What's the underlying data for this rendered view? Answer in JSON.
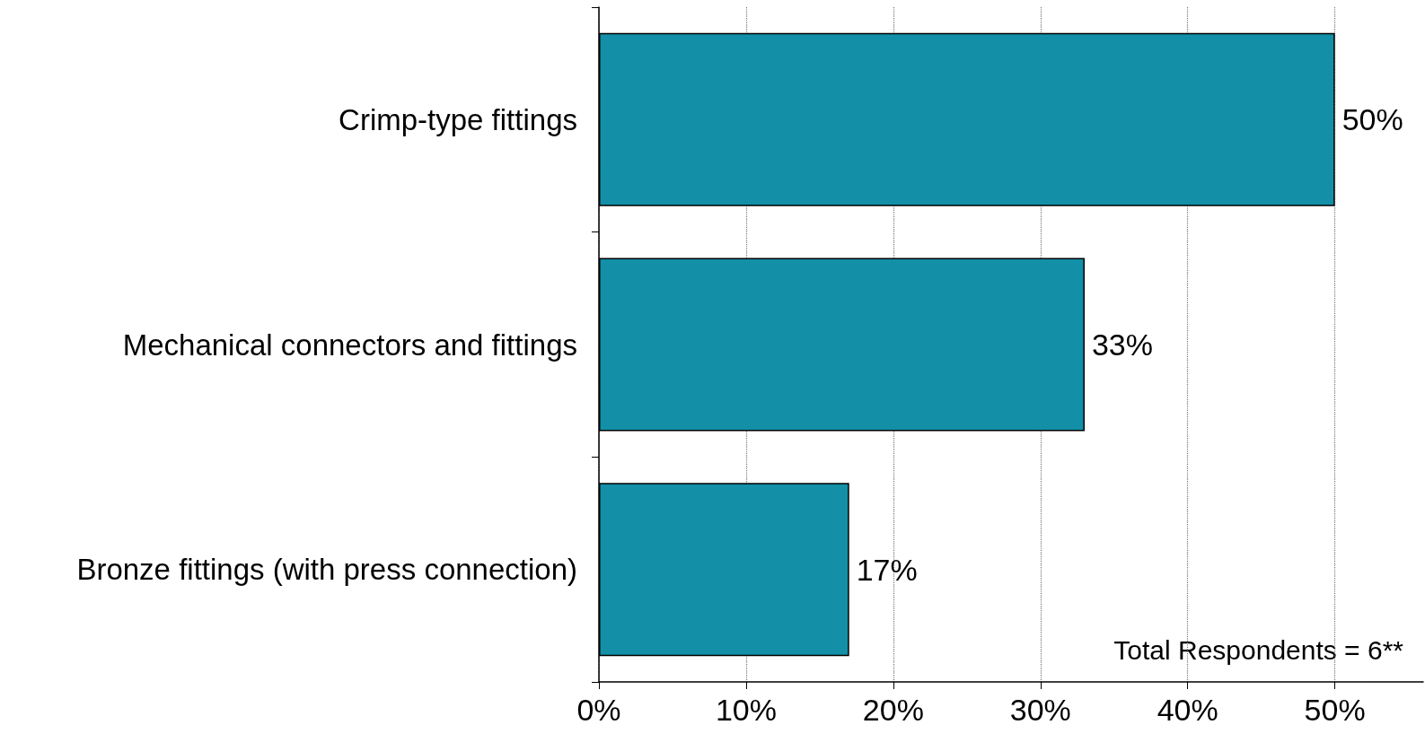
{
  "chart_data": {
    "type": "bar",
    "orientation": "horizontal",
    "categories": [
      "Crimp-type fittings",
      "Mechanical connectors and fittings",
      "Bronze fittings (with press connection)"
    ],
    "values": [
      50,
      33,
      17
    ],
    "color": "#1390a8",
    "value_labels": [
      "50%",
      "33%",
      "17%"
    ],
    "xlim": [
      0,
      56
    ],
    "xticks": [
      {
        "value": 0,
        "label": "0%"
      },
      {
        "value": 10,
        "label": "10%"
      },
      {
        "value": 20,
        "label": "20%"
      },
      {
        "value": 30,
        "label": "30%"
      },
      {
        "value": 40,
        "label": "40%"
      },
      {
        "value": 50,
        "label": "50%"
      }
    ],
    "grid": "x",
    "annotations": [
      "Total Respondents = 6**"
    ]
  }
}
